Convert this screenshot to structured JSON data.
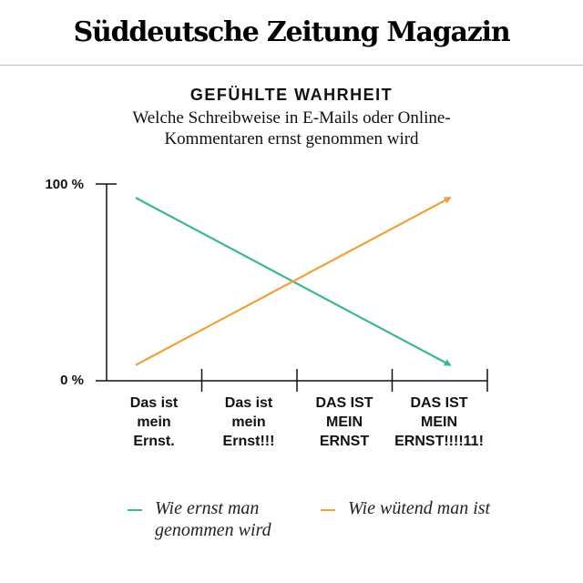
{
  "masthead": {
    "title": "Süddeutsche Zeitung Magazin"
  },
  "chart_data": {
    "type": "line",
    "title": "GEFÜHLTE WAHRHEIT",
    "subtitle": "Welche Schreibweise in E-Mails oder Online-Kommentaren ernst genommen wird",
    "categories": [
      "Das ist\nmein\nErnst.",
      "Das ist\nmein\nErnst!!!",
      "DAS IST\nMEIN\nERNST",
      "DAS IST\nMEIN\nERNST!!!!11!"
    ],
    "y_tick_labels": [
      "100 %",
      "0 %"
    ],
    "ylim": [
      0,
      100
    ],
    "series": [
      {
        "name": "Wie ernst man genommen wird",
        "color": "#3cb88e",
        "x": [
          0,
          3
        ],
        "y": [
          93,
          8
        ]
      },
      {
        "name": "Wie wütend man ist",
        "color": "#f0a03c",
        "x": [
          0,
          3
        ],
        "y": [
          8,
          93
        ]
      }
    ],
    "grid": false,
    "legend": "bottom"
  }
}
